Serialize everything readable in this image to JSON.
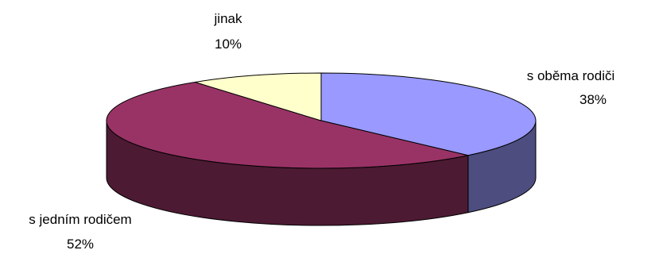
{
  "chart_data": {
    "type": "pie",
    "style": "3d",
    "categories": [
      "s oběma rodiči",
      "s jedním rodičem",
      "jinak"
    ],
    "values": [
      38,
      52,
      10
    ],
    "labels": [
      {
        "name": "s oběma rodiči",
        "percent": "38%"
      },
      {
        "name": "s jedním rodičem",
        "percent": "52%"
      },
      {
        "name": "jinak",
        "percent": "10%"
      }
    ],
    "colors": {
      "top": [
        "#9999FF",
        "#993366",
        "#FFFFCC"
      ],
      "side": [
        "#4D4D80",
        "#4D1A33",
        "#80806A"
      ],
      "edge": "#000000"
    },
    "start_angle_deg": 90,
    "direction": "clockwise"
  }
}
